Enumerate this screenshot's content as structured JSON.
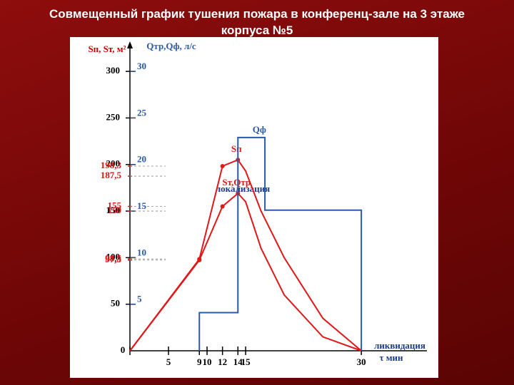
{
  "chart_data": {
    "type": "line",
    "title": [
      "Совмещенный график тушения пожара в конференц-зале на 3 этаже",
      "корпуса №5"
    ],
    "y_label": "Sп, Sт, м²",
    "y2_label": "Qтр,Qф, л/с",
    "x_label": "τ мин",
    "xlim": [
      0,
      38.5
    ],
    "ylim": [
      0,
      320
    ],
    "y2lim": [
      0,
      32
    ],
    "xticks": [
      0,
      5,
      9,
      10,
      12,
      14,
      15,
      30
    ],
    "yticks": [
      50,
      100,
      150,
      200,
      250,
      300
    ],
    "y2ticks": [
      5,
      10,
      15,
      20,
      25,
      30
    ],
    "reference_values": [
      {
        "value": 198.3,
        "label": "198,3"
      },
      {
        "value": 187.5,
        "label": "187,5"
      },
      {
        "value": 155,
        "label": "155"
      },
      {
        "value": 150,
        "label": "150"
      },
      {
        "value": 98.5,
        "label": "98,5"
      },
      {
        "value": 97.3,
        "label": "97,3"
      }
    ],
    "annotations": [
      "локализация",
      "ликвидация"
    ],
    "series": [
      {
        "name": "Sп",
        "color": "#e01818",
        "x": [
          0,
          9,
          12,
          14,
          15,
          17,
          20,
          25,
          30
        ],
        "values": [
          0,
          98.5,
          198.3,
          205,
          193,
          150,
          100,
          35,
          0
        ]
      },
      {
        "name": "Sт,Qтр",
        "color": "#e01818",
        "x": [
          0,
          9,
          12,
          14,
          15,
          17,
          20,
          25,
          30
        ],
        "values": [
          0,
          97.3,
          155,
          169,
          160,
          110,
          60,
          15,
          0
        ]
      },
      {
        "name": "Qф",
        "color": "#2a5aa8",
        "axis": "y2",
        "x": [
          9,
          9,
          14,
          14,
          17.5,
          17.5,
          30,
          30
        ],
        "values": [
          0,
          4.1,
          4.1,
          22.9,
          22.9,
          15.1,
          15.1,
          0
        ]
      }
    ]
  }
}
